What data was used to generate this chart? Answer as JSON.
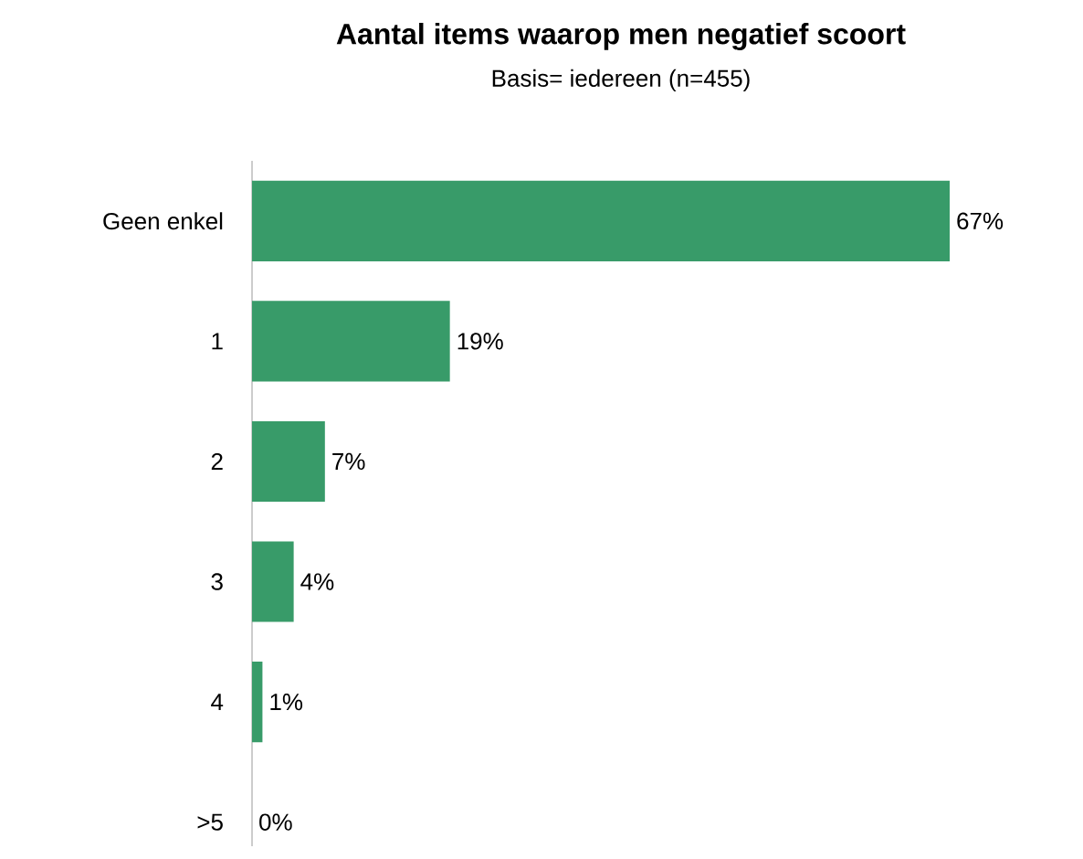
{
  "chart_data": {
    "type": "bar",
    "orientation": "horizontal",
    "title": "Aantal items waarop men negatief scoort",
    "subtitle": "Basis= iedereen  (n=455)",
    "categories": [
      "Geen enkel",
      "1",
      "2",
      "3",
      "4",
      ">5"
    ],
    "values": [
      67,
      19,
      7,
      4,
      1,
      0
    ],
    "value_labels": [
      "67%",
      "19%",
      "7%",
      "4%",
      "1%",
      "0%"
    ],
    "color": "#389b69"
  }
}
